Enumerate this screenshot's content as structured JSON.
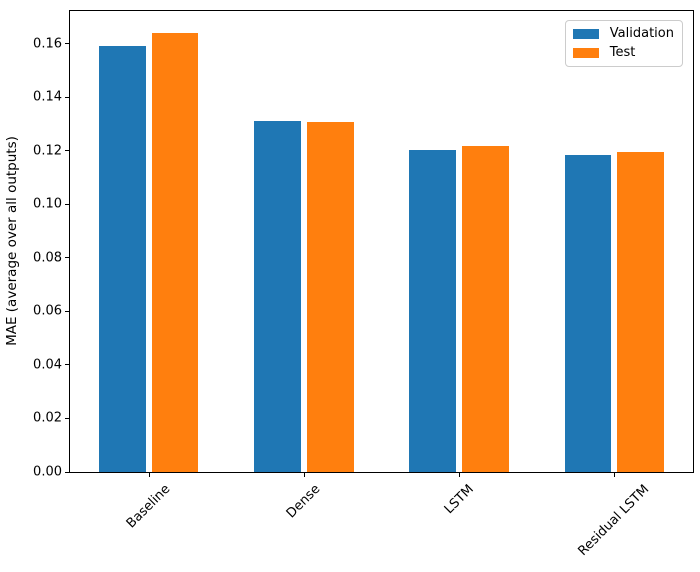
{
  "figure": {
    "background_color": "#ffffff",
    "text_color": "#000000"
  },
  "chart_data": {
    "type": "bar",
    "title": "",
    "xlabel": "",
    "ylabel": "MAE (average over all outputs)",
    "categories": [
      "Baseline",
      "Dense",
      "LSTM",
      "Residual LSTM"
    ],
    "series": [
      {
        "name": "Validation",
        "color": "#1f77b4",
        "values": [
          0.1593,
          0.131,
          0.1204,
          0.1184
        ]
      },
      {
        "name": "Test",
        "color": "#ff7f0e",
        "values": [
          0.1639,
          0.1308,
          0.1216,
          0.1196
        ]
      }
    ],
    "ylim": [
      0,
      0.1722
    ],
    "yticks": [
      {
        "value": 0.0,
        "label": "0.00"
      },
      {
        "value": 0.02,
        "label": "0.02"
      },
      {
        "value": 0.04,
        "label": "0.04"
      },
      {
        "value": 0.06,
        "label": "0.06"
      },
      {
        "value": 0.08,
        "label": "0.08"
      },
      {
        "value": 0.1,
        "label": "0.10"
      },
      {
        "value": 0.12,
        "label": "0.12"
      },
      {
        "value": 0.14,
        "label": "0.14"
      },
      {
        "value": 0.16,
        "label": "0.16"
      }
    ],
    "grid": false,
    "legend_position": "upper right",
    "xtick_rotation_deg": 45,
    "bar_width_units": 0.3,
    "series_center_offsets": [
      -0.17,
      0.17
    ]
  }
}
